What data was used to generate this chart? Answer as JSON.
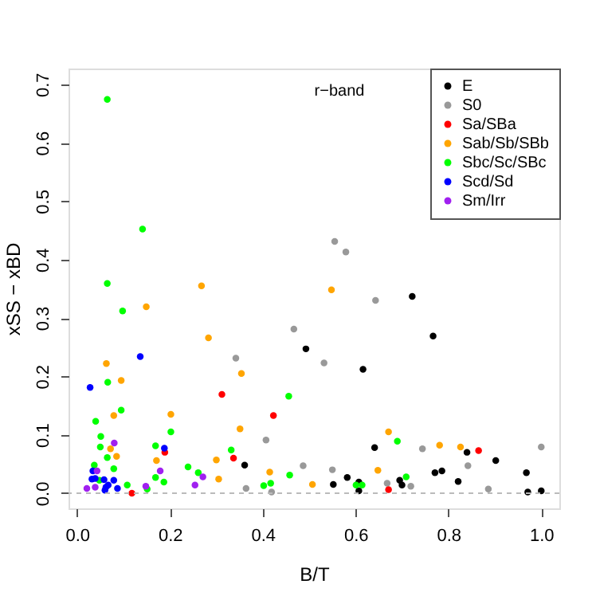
{
  "chart_data": {
    "type": "scatter",
    "xlabel": "B/T",
    "ylabel": "xSS − xBD",
    "annotations": [
      "r−band"
    ],
    "xlim": [
      -0.0185,
      1.039
    ],
    "ylim": [
      -0.026,
      0.727
    ],
    "xticks": [
      {
        "value": 0,
        "label": "0.0"
      },
      {
        "value": 0.2,
        "label": "0.2"
      },
      {
        "value": 0.4,
        "label": "0.4"
      },
      {
        "value": 0.6,
        "label": "0.6"
      },
      {
        "value": 0.8,
        "label": "0.8"
      },
      {
        "value": 1,
        "label": "1.0"
      }
    ],
    "yticks": [
      {
        "value": 0,
        "label": "0.0"
      },
      {
        "value": 0.1,
        "label": "0.1"
      },
      {
        "value": 0.2,
        "label": "0.2"
      },
      {
        "value": 0.3,
        "label": "0.3"
      },
      {
        "value": 0.4,
        "label": "0.4"
      },
      {
        "value": 0.5,
        "label": "0.5"
      },
      {
        "value": 0.6,
        "label": "0.6"
      },
      {
        "value": 0.7,
        "label": "0.7"
      }
    ],
    "grid": false,
    "legend": "top right",
    "marker": "circle",
    "ref_lines": [
      {
        "axis": "y",
        "value": 0,
        "label": null,
        "color": "#bbbbbb",
        "line_style": "dashed"
      }
    ],
    "series": [
      {
        "name": "E",
        "color": "#000000",
        "x": [
          0.722,
          0.767,
          0.493,
          0.616,
          0.641,
          0.84,
          0.902,
          0.771,
          0.786,
          0.968,
          0.582,
          0.695,
          0.552,
          0.607,
          0.821,
          0.7,
          0.607,
          0.971,
          1.0,
          0.361
        ],
        "values": [
          0.337,
          0.269,
          0.247,
          0.212,
          0.078,
          0.07,
          0.056,
          0.035,
          0.038,
          0.035,
          0.027,
          0.022,
          0.015,
          0.019,
          0.02,
          0.014,
          0.004,
          0.002,
          0.004,
          0.048
        ]
      },
      {
        "name": "S0",
        "color": "#999999",
        "x": [
          0.555,
          0.579,
          0.643,
          0.467,
          0.532,
          0.342,
          0.407,
          0.744,
          1.0,
          0.487,
          0.842,
          0.55,
          0.668,
          0.719,
          0.886,
          0.364,
          0.419
        ],
        "values": [
          0.431,
          0.413,
          0.33,
          0.281,
          0.223,
          0.231,
          0.091,
          0.076,
          0.079,
          0.047,
          0.047,
          0.04,
          0.017,
          0.012,
          0.007,
          0.008,
          0.002
        ]
      },
      {
        "name": "Sa/SBa",
        "color": "#ff0000",
        "x": [
          0.312,
          0.423,
          0.189,
          0.337,
          0.865,
          0.671,
          0.118
        ],
        "values": [
          0.169,
          0.133,
          0.07,
          0.06,
          0.073,
          0.006,
          0.0
        ]
      },
      {
        "name": "Sab/Sb/SBb",
        "color": "#ffa500",
        "x": [
          0.268,
          0.149,
          0.283,
          0.548,
          0.063,
          0.095,
          0.354,
          0.079,
          0.202,
          0.351,
          0.072,
          0.085,
          0.3,
          0.415,
          0.305,
          0.671,
          0.781,
          0.826,
          0.648,
          0.507,
          0.171
        ],
        "values": [
          0.355,
          0.319,
          0.266,
          0.348,
          0.222,
          0.193,
          0.205,
          0.133,
          0.135,
          0.11,
          0.076,
          0.063,
          0.057,
          0.036,
          0.024,
          0.105,
          0.082,
          0.079,
          0.039,
          0.015,
          0.056
        ]
      },
      {
        "name": "Sbc/Sc/SBc",
        "color": "#00ff00",
        "x": [
          0.065,
          0.141,
          0.065,
          0.098,
          0.066,
          0.456,
          0.095,
          0.04,
          0.051,
          0.202,
          0.05,
          0.169,
          0.332,
          0.065,
          0.239,
          0.037,
          0.079,
          0.261,
          0.458,
          0.169,
          0.048,
          0.187,
          0.417,
          0.108,
          0.402,
          0.151,
          0.69,
          0.709,
          0.601,
          0.614
        ],
        "values": [
          0.674,
          0.452,
          0.359,
          0.312,
          0.19,
          0.166,
          0.142,
          0.123,
          0.097,
          0.105,
          0.079,
          0.081,
          0.074,
          0.061,
          0.045,
          0.048,
          0.042,
          0.035,
          0.031,
          0.027,
          0.022,
          0.019,
          0.017,
          0.014,
          0.013,
          0.007,
          0.089,
          0.028,
          0.014,
          0.014
        ]
      },
      {
        "name": "Scd/Sd",
        "color": "#0000ff",
        "x": [
          0.028,
          0.136,
          0.188,
          0.034,
          0.039,
          0.032,
          0.058,
          0.079,
          0.067,
          0.062,
          0.087,
          0.06
        ],
        "values": [
          0.181,
          0.234,
          0.077,
          0.038,
          0.025,
          0.024,
          0.023,
          0.022,
          0.014,
          0.01,
          0.008,
          0.005
        ]
      },
      {
        "name": "Sm/Irr",
        "color": "#a020f0",
        "x": [
          0.08,
          0.043,
          0.179,
          0.271,
          0.254,
          0.148,
          0.039,
          0.021
        ],
        "values": [
          0.086,
          0.038,
          0.038,
          0.028,
          0.014,
          0.012,
          0.01,
          0.008
        ]
      }
    ]
  }
}
